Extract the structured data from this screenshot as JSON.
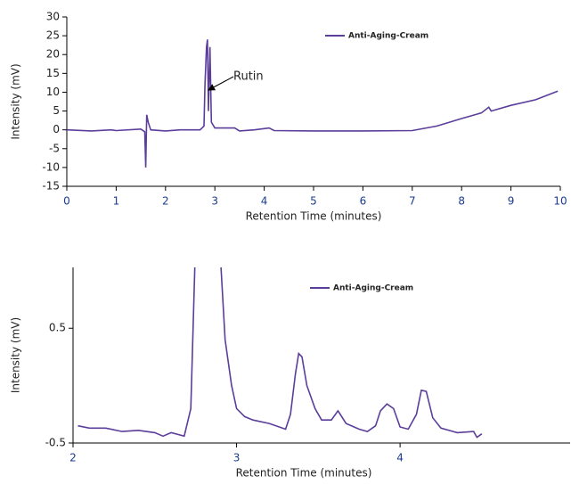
{
  "chart_data": [
    {
      "type": "line",
      "xlabel": "Retention Time (minutes)",
      "ylabel": "Intensity (mV)",
      "xlim": [
        0,
        10
      ],
      "xticks": [
        0,
        1,
        2,
        3,
        4,
        5,
        6,
        7,
        8,
        9,
        10
      ],
      "ylim": [
        -15,
        30
      ],
      "yticks": [
        -15,
        -10,
        -5,
        0,
        5,
        10,
        15,
        20,
        25,
        30
      ],
      "legend": "top-center",
      "annotation": "Rutin",
      "series": [
        {
          "name": "Anti-Aging-Cream",
          "color": "#5b3d9a",
          "x": [
            0,
            0.5,
            0.9,
            1.0,
            1.5,
            1.58,
            1.6,
            1.62,
            1.65,
            1.7,
            2.0,
            2.3,
            2.7,
            2.78,
            2.8,
            2.83,
            2.85,
            2.87,
            2.9,
            2.93,
            3.0,
            3.4,
            3.5,
            3.8,
            4.1,
            4.2,
            5,
            6,
            7,
            7.5,
            8,
            8.4,
            8.55,
            8.6,
            9,
            9.5,
            9.95
          ],
          "values": [
            0,
            -0.3,
            0,
            -0.2,
            0.2,
            -0.5,
            -10,
            4,
            2,
            0,
            -0.3,
            0,
            0,
            1,
            12,
            22,
            24,
            5,
            22,
            2,
            0.5,
            0.5,
            -0.3,
            0,
            0.5,
            -0.2,
            -0.3,
            -0.3,
            -0.2,
            1,
            3,
            4.5,
            6,
            5,
            6.5,
            8,
            10.3
          ]
        }
      ]
    },
    {
      "type": "line",
      "xlabel": "Retention Time (minutes)",
      "ylabel": "Intensity (mV)",
      "xlim": [
        2,
        5.04
      ],
      "xticks": [
        2,
        3,
        4
      ],
      "ylim": [
        -0.5,
        1.03
      ],
      "yticks": [
        -0.5,
        0.5
      ],
      "legend": "top-center",
      "series": [
        {
          "name": "Anti-Aging-Cream",
          "color": "#5b3d9a",
          "x": [
            2.03,
            2.1,
            2.2,
            2.3,
            2.4,
            2.5,
            2.55,
            2.6,
            2.68,
            2.72,
            2.745,
            2.8,
            2.905,
            2.93,
            2.97,
            3.0,
            3.05,
            3.1,
            3.2,
            3.3,
            3.33,
            3.36,
            3.38,
            3.4,
            3.43,
            3.48,
            3.52,
            3.58,
            3.62,
            3.67,
            3.75,
            3.8,
            3.85,
            3.88,
            3.92,
            3.96,
            4.0,
            4.05,
            4.1,
            4.13,
            4.16,
            4.2,
            4.25,
            4.35,
            4.45,
            4.47,
            4.5
          ],
          "values": [
            -0.35,
            -0.37,
            -0.37,
            -0.4,
            -0.39,
            -0.41,
            -0.44,
            -0.41,
            -0.44,
            -0.2,
            1.03,
            null,
            1.03,
            0.4,
            0.0,
            -0.2,
            -0.27,
            -0.3,
            -0.33,
            -0.38,
            -0.25,
            0.1,
            0.28,
            0.25,
            0.0,
            -0.2,
            -0.3,
            -0.3,
            -0.22,
            -0.33,
            -0.38,
            -0.4,
            -0.35,
            -0.22,
            -0.16,
            -0.2,
            -0.36,
            -0.38,
            -0.25,
            -0.04,
            -0.05,
            -0.28,
            -0.37,
            -0.41,
            -0.4,
            -0.45,
            -0.42
          ]
        }
      ]
    }
  ]
}
